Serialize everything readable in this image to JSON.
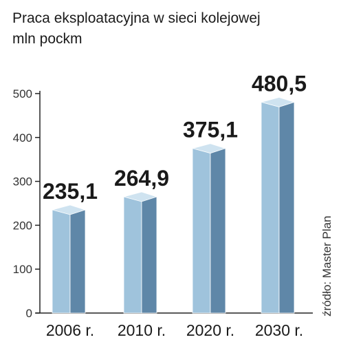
{
  "title": "Praca eksploatacyjna w sieci kolejowej",
  "subtitle": "mln pockm",
  "source": "źródło: Master Plan",
  "colors": {
    "bar_front": "#9fc3dc",
    "bar_side": "#5f87a8",
    "bar_top": "#cfe3f0",
    "axis": "#222222",
    "text": "#1a1a1a"
  },
  "chart_data": {
    "type": "bar",
    "title": "Praca eksploatacyjna w sieci kolejowej",
    "subtitle": "mln pockm",
    "categories": [
      "2006 r.",
      "2010 r.",
      "2020 r.",
      "2030 r."
    ],
    "values": [
      235.1,
      264.9,
      375.1,
      480.5
    ],
    "value_labels": [
      "235,1",
      "264,9",
      "375,1",
      "480,5"
    ],
    "ylim": [
      0,
      500
    ],
    "yticks": [
      "0",
      "100",
      "200",
      "300",
      "400",
      "500"
    ],
    "xlabel": "",
    "ylabel": "",
    "grid": false,
    "legend": "none"
  }
}
